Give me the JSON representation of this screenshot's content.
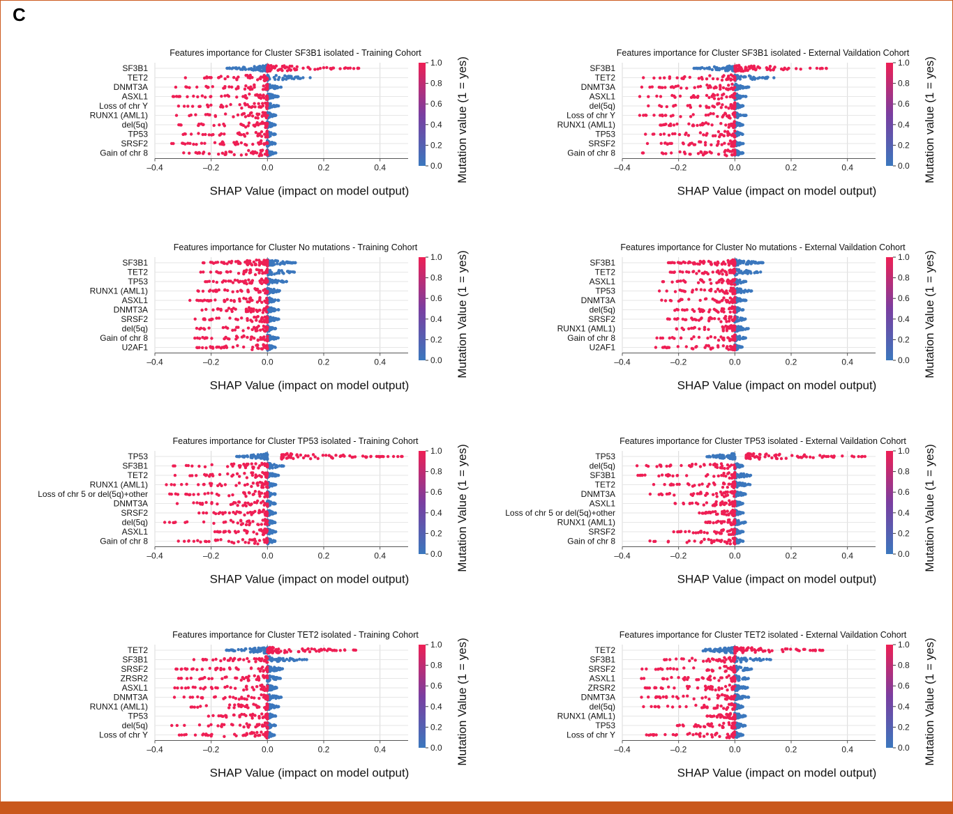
{
  "panel_label": "C",
  "colors": {
    "low": "#3b77bd",
    "mid": "#7a3ea0",
    "high": "#ee1f54",
    "grid": "#d9d9d9",
    "frame": "#c9581c"
  },
  "colorbar": {
    "label": "Mutation value (1 = yes)",
    "ticks": [
      "0.0",
      "0.2",
      "0.4",
      "0.6",
      "0.8",
      "1.0"
    ]
  },
  "chart_data": [
    {
      "type": "scatter",
      "subtype": "shap-beeswarm",
      "title": "Features importance for Cluster SF3B1 isolated - Training Cohort",
      "xlabel": "SHAP Value (impact on model output)",
      "colorbar_label": "Mutation value (1 = yes)",
      "xlim": [
        -0.4,
        0.5
      ],
      "xticks": [
        "–0.4",
        "–0.2",
        "0.0",
        "0.2",
        "0.4"
      ],
      "features": [
        {
          "name": "SF3B1",
          "neg": [
            -0.15,
            0.0
          ],
          "pos": [
            0.0,
            0.34
          ]
        },
        {
          "name": "TET2",
          "neg": [
            0.0,
            0.16
          ],
          "pos": [
            -0.3,
            0.0
          ]
        },
        {
          "name": "DNMT3A",
          "neg": [
            0.0,
            0.05
          ],
          "pos": [
            -0.34,
            0.0
          ]
        },
        {
          "name": "ASXL1",
          "neg": [
            0.0,
            0.04
          ],
          "pos": [
            -0.34,
            0.0
          ]
        },
        {
          "name": "Loss of chr Y",
          "neg": [
            0.0,
            0.04
          ],
          "pos": [
            -0.34,
            0.0
          ]
        },
        {
          "name": "RUNX1 (AML1)",
          "neg": [
            0.0,
            0.03
          ],
          "pos": [
            -0.34,
            0.0
          ]
        },
        {
          "name": "del(5q)",
          "neg": [
            0.0,
            0.03
          ],
          "pos": [
            -0.34,
            0.0
          ]
        },
        {
          "name": "TP53",
          "neg": [
            0.0,
            0.03
          ],
          "pos": [
            -0.33,
            0.0
          ]
        },
        {
          "name": "SRSF2",
          "neg": [
            0.0,
            0.03
          ],
          "pos": [
            -0.35,
            0.0
          ]
        },
        {
          "name": "Gain of chr 8",
          "neg": [
            0.0,
            0.03
          ],
          "pos": [
            -0.34,
            0.0
          ]
        }
      ]
    },
    {
      "type": "scatter",
      "subtype": "shap-beeswarm",
      "title": "Features importance for Cluster SF3B1 isolated - External Vaildation Cohort",
      "xlabel": "SHAP Value (impact on model output)",
      "colorbar_label": "Mutation value (1 = yes)",
      "xlim": [
        -0.4,
        0.5
      ],
      "xticks": [
        "–0.4",
        "–0.2",
        "0.0",
        "0.2",
        "0.4"
      ],
      "features": [
        {
          "name": "SF3B1",
          "neg": [
            -0.15,
            0.0
          ],
          "pos": [
            0.0,
            0.35
          ]
        },
        {
          "name": "TET2",
          "neg": [
            0.0,
            0.15
          ],
          "pos": [
            -0.33,
            0.0
          ]
        },
        {
          "name": "DNMT3A",
          "neg": [
            0.0,
            0.05
          ],
          "pos": [
            -0.34,
            0.0
          ]
        },
        {
          "name": "ASXL1",
          "neg": [
            0.0,
            0.04
          ],
          "pos": [
            -0.35,
            0.0
          ]
        },
        {
          "name": "del(5q)",
          "neg": [
            0.0,
            0.03
          ],
          "pos": [
            -0.34,
            0.0
          ]
        },
        {
          "name": "Loss of chr Y",
          "neg": [
            0.0,
            0.04
          ],
          "pos": [
            -0.34,
            0.0
          ]
        },
        {
          "name": "RUNX1 (AML1)",
          "neg": [
            0.0,
            0.03
          ],
          "pos": [
            -0.33,
            0.0
          ]
        },
        {
          "name": "TP53",
          "neg": [
            0.0,
            0.03
          ],
          "pos": [
            -0.35,
            0.0
          ]
        },
        {
          "name": "SRSF2",
          "neg": [
            0.0,
            0.03
          ],
          "pos": [
            -0.32,
            0.0
          ]
        },
        {
          "name": "Gain of chr 8",
          "neg": [
            0.0,
            0.03
          ],
          "pos": [
            -0.33,
            0.0
          ]
        }
      ]
    },
    {
      "type": "scatter",
      "subtype": "shap-beeswarm",
      "title": "Features importance for Cluster No mutations - Training Cohort",
      "xlabel": "SHAP Value (impact on model output)",
      "colorbar_label": "Mutation Value (1 = yes)",
      "xlim": [
        -0.4,
        0.5
      ],
      "xticks": [
        "–0.4",
        "–0.2",
        "0.0",
        "0.2",
        "0.4"
      ],
      "features": [
        {
          "name": "SF3B1",
          "neg": [
            0.0,
            0.1
          ],
          "pos": [
            -0.24,
            0.0
          ]
        },
        {
          "name": "TET2",
          "neg": [
            0.0,
            0.1
          ],
          "pos": [
            -0.24,
            0.0
          ]
        },
        {
          "name": "TP53",
          "neg": [
            0.0,
            0.07
          ],
          "pos": [
            -0.26,
            0.0
          ]
        },
        {
          "name": "RUNX1 (AML1)",
          "neg": [
            0.0,
            0.05
          ],
          "pos": [
            -0.27,
            0.0
          ]
        },
        {
          "name": "ASXL1",
          "neg": [
            0.0,
            0.04
          ],
          "pos": [
            -0.28,
            0.0
          ]
        },
        {
          "name": "DNMT3A",
          "neg": [
            0.0,
            0.04
          ],
          "pos": [
            -0.28,
            0.0
          ]
        },
        {
          "name": "SRSF2",
          "neg": [
            0.0,
            0.04
          ],
          "pos": [
            -0.28,
            0.0
          ]
        },
        {
          "name": "del(5q)",
          "neg": [
            0.0,
            0.03
          ],
          "pos": [
            -0.28,
            0.0
          ]
        },
        {
          "name": "Gain of chr 8",
          "neg": [
            0.0,
            0.04
          ],
          "pos": [
            -0.28,
            0.0
          ]
        },
        {
          "name": "U2AF1",
          "neg": [
            0.0,
            0.03
          ],
          "pos": [
            -0.29,
            0.0
          ]
        }
      ]
    },
    {
      "type": "scatter",
      "subtype": "shap-beeswarm",
      "title": "Features importance for Cluster No mutations - External Vaildation Cohort",
      "xlabel": "SHAP Value (impact on model output)",
      "colorbar_label": "Mutation Value (1 = yes)",
      "xlim": [
        -0.4,
        0.5
      ],
      "xticks": [
        "–0.4",
        "–0.2",
        "0.0",
        "0.2",
        "0.4"
      ],
      "features": [
        {
          "name": "SF3B1",
          "neg": [
            0.0,
            0.1
          ],
          "pos": [
            -0.24,
            0.0
          ]
        },
        {
          "name": "TET2",
          "neg": [
            0.0,
            0.1
          ],
          "pos": [
            -0.24,
            0.0
          ]
        },
        {
          "name": "ASXL1",
          "neg": [
            0.0,
            0.04
          ],
          "pos": [
            -0.28,
            0.0
          ]
        },
        {
          "name": "TP53",
          "neg": [
            0.0,
            0.06
          ],
          "pos": [
            -0.27,
            0.0
          ]
        },
        {
          "name": "DNMT3A",
          "neg": [
            0.0,
            0.04
          ],
          "pos": [
            -0.28,
            0.0
          ]
        },
        {
          "name": "del(5q)",
          "neg": [
            0.0,
            0.03
          ],
          "pos": [
            -0.29,
            0.0
          ]
        },
        {
          "name": "SRSF2",
          "neg": [
            0.0,
            0.04
          ],
          "pos": [
            -0.28,
            0.0
          ]
        },
        {
          "name": "RUNX1 (AML1)",
          "neg": [
            0.0,
            0.05
          ],
          "pos": [
            -0.27,
            0.0
          ]
        },
        {
          "name": "Gain of chr 8",
          "neg": [
            0.0,
            0.04
          ],
          "pos": [
            -0.28,
            0.0
          ]
        },
        {
          "name": "U2AF1",
          "neg": [
            0.0,
            0.03
          ],
          "pos": [
            -0.29,
            0.0
          ]
        }
      ]
    },
    {
      "type": "scatter",
      "subtype": "shap-beeswarm",
      "title": "Features importance for Cluster TP53 isolated - Training Cohort",
      "xlabel": "SHAP Value (impact on model output)",
      "colorbar_label": "Mutation Value (1 = yes)",
      "xlim": [
        -0.4,
        0.5
      ],
      "xticks": [
        "–0.4",
        "–0.2",
        "0.0",
        "0.2",
        "0.4"
      ],
      "features": [
        {
          "name": "TP53",
          "neg": [
            -0.11,
            0.0
          ],
          "pos": [
            0.05,
            0.48
          ]
        },
        {
          "name": "SF3B1",
          "neg": [
            0.0,
            0.06
          ],
          "pos": [
            -0.35,
            0.0
          ]
        },
        {
          "name": "TET2",
          "neg": [
            0.0,
            0.04
          ],
          "pos": [
            -0.34,
            0.0
          ]
        },
        {
          "name": "RUNX1 (AML1)",
          "neg": [
            0.0,
            0.03
          ],
          "pos": [
            -0.36,
            0.0
          ]
        },
        {
          "name": "Loss of chr 5 or del(5q)+other",
          "neg": [
            0.0,
            0.03
          ],
          "pos": [
            -0.37,
            0.0
          ]
        },
        {
          "name": "DNMT3A",
          "neg": [
            0.0,
            0.03
          ],
          "pos": [
            -0.34,
            0.0
          ]
        },
        {
          "name": "SRSF2",
          "neg": [
            0.0,
            0.03
          ],
          "pos": [
            -0.25,
            0.0
          ]
        },
        {
          "name": "del(5q)",
          "neg": [
            0.0,
            0.03
          ],
          "pos": [
            -0.37,
            0.0
          ]
        },
        {
          "name": "ASXL1",
          "neg": [
            0.0,
            0.03
          ],
          "pos": [
            -0.19,
            0.0
          ]
        },
        {
          "name": "Gain of chr 8",
          "neg": [
            0.0,
            0.03
          ],
          "pos": [
            -0.33,
            0.0
          ]
        }
      ]
    },
    {
      "type": "scatter",
      "subtype": "shap-beeswarm",
      "title": "Features importance for Cluster TP53 isolated - External Vaildation Cohort",
      "xlabel": "SHAP Value (impact on model output)",
      "colorbar_label": "Mutation Value (1 = yes)",
      "xlim": [
        -0.4,
        0.5
      ],
      "xticks": [
        "–0.4",
        "–0.2",
        "0.0",
        "0.2",
        "0.4"
      ],
      "features": [
        {
          "name": "TP53",
          "neg": [
            -0.11,
            0.0
          ],
          "pos": [
            0.04,
            0.48
          ]
        },
        {
          "name": "del(5q)",
          "neg": [
            0.0,
            0.03
          ],
          "pos": [
            -0.37,
            0.0
          ]
        },
        {
          "name": "SF3B1",
          "neg": [
            0.0,
            0.07
          ],
          "pos": [
            -0.35,
            0.0
          ]
        },
        {
          "name": "TET2",
          "neg": [
            0.0,
            0.06
          ],
          "pos": [
            -0.32,
            0.0
          ]
        },
        {
          "name": "DNMT3A",
          "neg": [
            0.0,
            0.04
          ],
          "pos": [
            -0.33,
            0.0
          ]
        },
        {
          "name": "ASXL1",
          "neg": [
            0.0,
            0.03
          ],
          "pos": [
            -0.24,
            0.0
          ]
        },
        {
          "name": "Loss of chr 5 or del(5q)+other",
          "neg": [
            0.0,
            0.03
          ],
          "pos": [
            -0.13,
            0.0
          ]
        },
        {
          "name": "RUNX1 (AML1)",
          "neg": [
            0.0,
            0.04
          ],
          "pos": [
            -0.11,
            0.0
          ]
        },
        {
          "name": "SRSF2",
          "neg": [
            0.0,
            0.03
          ],
          "pos": [
            -0.23,
            0.0
          ]
        },
        {
          "name": "Gain of chr 8",
          "neg": [
            0.0,
            0.03
          ],
          "pos": [
            -0.33,
            0.0
          ]
        }
      ]
    },
    {
      "type": "scatter",
      "subtype": "shap-beeswarm",
      "title": "Features importance for Cluster TET2 isolated - Training Cohort",
      "xlabel": "SHAP Value (impact on model output)",
      "colorbar_label": "Mutation Value (1 = yes)",
      "xlim": [
        -0.4,
        0.5
      ],
      "xticks": [
        "–0.4",
        "–0.2",
        "0.0",
        "0.2",
        "0.4"
      ],
      "features": [
        {
          "name": "TET2",
          "neg": [
            -0.15,
            0.0
          ],
          "pos": [
            0.0,
            0.34
          ]
        },
        {
          "name": "SF3B1",
          "neg": [
            0.0,
            0.14
          ],
          "pos": [
            -0.27,
            0.0
          ]
        },
        {
          "name": "SRSF2",
          "neg": [
            0.0,
            0.06
          ],
          "pos": [
            -0.33,
            0.0
          ]
        },
        {
          "name": "ZRSR2",
          "neg": [
            0.0,
            0.05
          ],
          "pos": [
            -0.33,
            0.0
          ]
        },
        {
          "name": "ASXL1",
          "neg": [
            0.0,
            0.04
          ],
          "pos": [
            -0.34,
            0.0
          ]
        },
        {
          "name": "DNMT3A",
          "neg": [
            0.0,
            0.05
          ],
          "pos": [
            -0.34,
            0.0
          ]
        },
        {
          "name": "RUNX1 (AML1)",
          "neg": [
            0.0,
            0.04
          ],
          "pos": [
            -0.33,
            0.0
          ]
        },
        {
          "name": "TP53",
          "neg": [
            0.0,
            0.03
          ],
          "pos": [
            -0.23,
            0.0
          ]
        },
        {
          "name": "del(5q)",
          "neg": [
            0.0,
            0.03
          ],
          "pos": [
            -0.34,
            0.0
          ]
        },
        {
          "name": "Loss of chr Y",
          "neg": [
            0.0,
            0.03
          ],
          "pos": [
            -0.34,
            0.0
          ]
        }
      ]
    },
    {
      "type": "scatter",
      "subtype": "shap-beeswarm",
      "title": "Features importance for Cluster TET2 isolated - External Vaildation Cohort",
      "xlabel": "SHAP Value (impact on model output)",
      "colorbar_label": "Mutation Value (1 = yes)",
      "xlim": [
        -0.4,
        0.5
      ],
      "xticks": [
        "–0.4",
        "–0.2",
        "0.0",
        "0.2",
        "0.4"
      ],
      "features": [
        {
          "name": "TET2",
          "neg": [
            -0.15,
            0.0
          ],
          "pos": [
            0.0,
            0.34
          ]
        },
        {
          "name": "SF3B1",
          "neg": [
            0.0,
            0.14
          ],
          "pos": [
            -0.27,
            0.0
          ]
        },
        {
          "name": "SRSF2",
          "neg": [
            0.0,
            0.06
          ],
          "pos": [
            -0.33,
            0.0
          ]
        },
        {
          "name": "ASXL1",
          "neg": [
            0.0,
            0.05
          ],
          "pos": [
            -0.34,
            0.0
          ]
        },
        {
          "name": "ZRSR2",
          "neg": [
            0.0,
            0.05
          ],
          "pos": [
            -0.33,
            0.0
          ]
        },
        {
          "name": "DNMT3A",
          "neg": [
            0.0,
            0.05
          ],
          "pos": [
            -0.34,
            0.0
          ]
        },
        {
          "name": "del(5q)",
          "neg": [
            0.0,
            0.03
          ],
          "pos": [
            -0.34,
            0.0
          ]
        },
        {
          "name": "RUNX1 (AML1)",
          "neg": [
            0.0,
            0.04
          ],
          "pos": [
            -0.1,
            0.0
          ]
        },
        {
          "name": "TP53",
          "neg": [
            0.0,
            0.04
          ],
          "pos": [
            -0.22,
            0.0
          ]
        },
        {
          "name": "Loss of chr Y",
          "neg": [
            0.0,
            0.03
          ],
          "pos": [
            -0.34,
            0.0
          ]
        }
      ]
    }
  ]
}
